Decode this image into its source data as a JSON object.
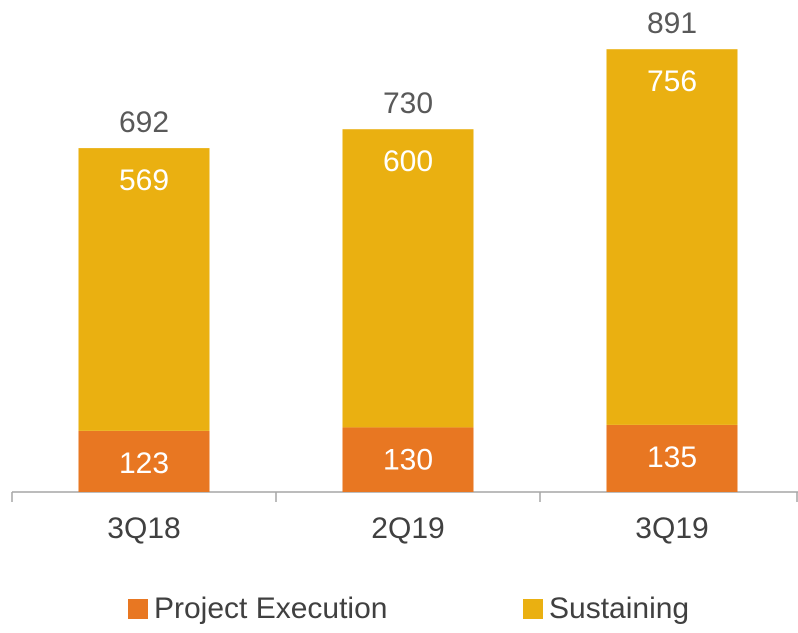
{
  "chart_data": {
    "type": "stacked_bar",
    "categories": [
      "3Q18",
      "2Q19",
      "3Q19"
    ],
    "series": [
      {
        "name": "Project Execution",
        "color": "#e87722",
        "values": [
          123,
          130,
          135
        ]
      },
      {
        "name": "Sustaining",
        "color": "#eab011",
        "values": [
          569,
          600,
          756
        ]
      }
    ],
    "totals": [
      692,
      730,
      891
    ],
    "ylim": [
      0,
      990
    ]
  }
}
